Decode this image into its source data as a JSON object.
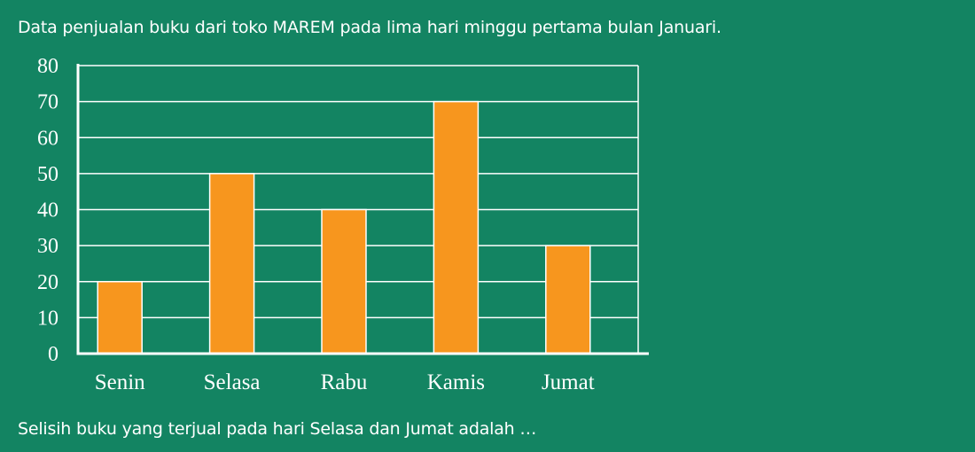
{
  "page": {
    "background": "#138462",
    "heading": "Data penjualan buku dari toko MAREM pada lima hari minggu pertama bulan Januari.",
    "question": "Selisih buku yang terjual pada hari Selasa dan Jumat  adalah …"
  },
  "chart_data": {
    "type": "bar",
    "categories": [
      "Senin",
      "Selasa",
      "Rabu",
      "Kamis",
      "Jumat"
    ],
    "values": [
      20,
      50,
      40,
      70,
      30
    ],
    "title": "",
    "xlabel": "",
    "ylabel": "",
    "ylim": [
      0,
      80
    ],
    "yticks": [
      "0",
      "10",
      "20",
      "30",
      "40",
      "50",
      "60",
      "70",
      "80"
    ],
    "grid": true,
    "legend": "none",
    "bar_color": "#f7961e",
    "grid_color": "#ffffff"
  }
}
